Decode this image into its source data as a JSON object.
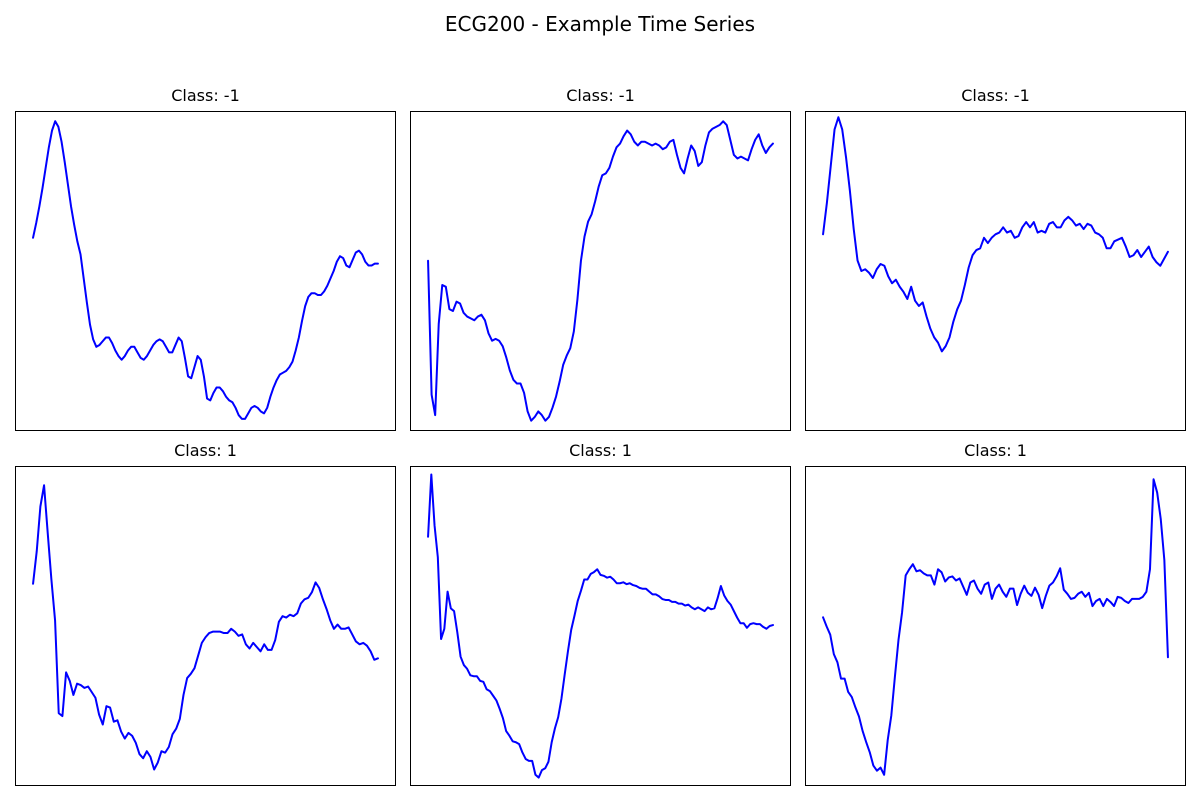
{
  "title": "ECG200 - Example Time Series",
  "chart_data": [
    {
      "type": "line",
      "title": "Class: -1",
      "xlabel": "",
      "ylabel": "",
      "ticks_visible": false,
      "grid": false,
      "color": "#0000ff",
      "y": [
        0.36,
        0.44,
        0.53,
        0.63,
        0.74,
        0.85,
        0.94,
        0.99,
        0.96,
        0.88,
        0.77,
        0.65,
        0.53,
        0.43,
        0.34,
        0.27,
        0.14,
        0.01,
        -0.11,
        -0.19,
        -0.23,
        -0.22,
        -0.2,
        -0.18,
        -0.18,
        -0.21,
        -0.25,
        -0.28,
        -0.3,
        -0.28,
        -0.25,
        -0.23,
        -0.23,
        -0.26,
        -0.29,
        -0.3,
        -0.28,
        -0.25,
        -0.22,
        -0.2,
        -0.19,
        -0.2,
        -0.23,
        -0.26,
        -0.26,
        -0.22,
        -0.18,
        -0.2,
        -0.29,
        -0.39,
        -0.4,
        -0.34,
        -0.28,
        -0.3,
        -0.39,
        -0.51,
        -0.52,
        -0.48,
        -0.45,
        -0.45,
        -0.47,
        -0.5,
        -0.52,
        -0.53,
        -0.56,
        -0.6,
        -0.62,
        -0.62,
        -0.59,
        -0.56,
        -0.55,
        -0.56,
        -0.58,
        -0.59,
        -0.56,
        -0.5,
        -0.45,
        -0.41,
        -0.38,
        -0.37,
        -0.36,
        -0.34,
        -0.31,
        -0.25,
        -0.18,
        -0.09,
        -0.01,
        0.04,
        0.06,
        0.06,
        0.05,
        0.05,
        0.07,
        0.1,
        0.14,
        0.18,
        0.23,
        0.26,
        0.25,
        0.21,
        0.2,
        0.24,
        0.28,
        0.29,
        0.27,
        0.23,
        0.21,
        0.21,
        0.22,
        0.22
      ],
      "ylim": [
        -0.68,
        1.04
      ]
    },
    {
      "type": "line",
      "title": "Class: -1",
      "xlabel": "",
      "ylabel": "",
      "ticks_visible": false,
      "grid": false,
      "color": "#0000ff",
      "y": [
        0.35,
        -0.37,
        -0.48,
        0.01,
        0.22,
        0.21,
        0.09,
        0.08,
        0.13,
        0.12,
        0.07,
        0.05,
        0.04,
        0.03,
        0.05,
        0.06,
        0.03,
        -0.04,
        -0.08,
        -0.07,
        -0.08,
        -0.11,
        -0.17,
        -0.24,
        -0.29,
        -0.31,
        -0.31,
        -0.36,
        -0.46,
        -0.51,
        -0.49,
        -0.46,
        -0.48,
        -0.51,
        -0.49,
        -0.44,
        -0.38,
        -0.3,
        -0.21,
        -0.16,
        -0.12,
        -0.03,
        0.14,
        0.35,
        0.48,
        0.56,
        0.6,
        0.67,
        0.75,
        0.81,
        0.82,
        0.85,
        0.91,
        0.96,
        0.98,
        1.02,
        1.05,
        1.03,
        0.99,
        0.97,
        0.99,
        0.99,
        0.98,
        0.97,
        0.98,
        0.97,
        0.95,
        0.96,
        0.99,
        1.0,
        0.92,
        0.85,
        0.82,
        0.9,
        0.97,
        0.94,
        0.86,
        0.88,
        0.97,
        1.04,
        1.06,
        1.07,
        1.08,
        1.1,
        1.08,
        1.0,
        0.92,
        0.9,
        0.91,
        0.9,
        0.89,
        0.95,
        1.0,
        1.03,
        0.97,
        0.93,
        0.96,
        0.98
      ],
      "ylim": [
        -0.56,
        1.15
      ]
    },
    {
      "type": "line",
      "title": "Class: -1",
      "xlabel": "",
      "ylabel": "",
      "ticks_visible": false,
      "grid": false,
      "color": "#0000ff",
      "y": [
        0.52,
        0.7,
        0.91,
        1.12,
        1.19,
        1.12,
        0.96,
        0.77,
        0.55,
        0.37,
        0.31,
        0.32,
        0.3,
        0.27,
        0.32,
        0.35,
        0.34,
        0.28,
        0.24,
        0.26,
        0.22,
        0.19,
        0.15,
        0.22,
        0.14,
        0.11,
        0.13,
        0.05,
        -0.02,
        -0.07,
        -0.1,
        -0.15,
        -0.12,
        -0.07,
        0.02,
        0.09,
        0.14,
        0.23,
        0.33,
        0.4,
        0.43,
        0.44,
        0.5,
        0.47,
        0.5,
        0.52,
        0.53,
        0.56,
        0.53,
        0.54,
        0.5,
        0.51,
        0.56,
        0.59,
        0.56,
        0.59,
        0.53,
        0.54,
        0.53,
        0.58,
        0.59,
        0.56,
        0.56,
        0.6,
        0.62,
        0.6,
        0.57,
        0.58,
        0.55,
        0.58,
        0.57,
        0.53,
        0.52,
        0.5,
        0.44,
        0.44,
        0.48,
        0.49,
        0.5,
        0.45,
        0.39,
        0.4,
        0.43,
        0.39,
        0.42,
        0.45,
        0.39,
        0.36,
        0.34,
        0.38,
        0.42
      ],
      "ylim": [
        -0.6,
        1.22
      ]
    },
    {
      "type": "line",
      "title": "Class: 1",
      "xlabel": "",
      "ylabel": "",
      "ticks_visible": false,
      "grid": false,
      "color": "#0000ff",
      "y": [
        1.25,
        1.48,
        1.8,
        1.95,
        1.61,
        1.28,
        0.99,
        0.33,
        0.31,
        0.62,
        0.56,
        0.46,
        0.54,
        0.53,
        0.51,
        0.52,
        0.48,
        0.44,
        0.32,
        0.25,
        0.38,
        0.37,
        0.27,
        0.28,
        0.2,
        0.15,
        0.19,
        0.17,
        0.12,
        0.04,
        0.01,
        0.06,
        0.02,
        -0.07,
        -0.02,
        0.06,
        0.05,
        0.09,
        0.18,
        0.22,
        0.29,
        0.46,
        0.58,
        0.61,
        0.65,
        0.74,
        0.83,
        0.87,
        0.9,
        0.91,
        0.91,
        0.91,
        0.9,
        0.9,
        0.93,
        0.91,
        0.88,
        0.89,
        0.82,
        0.79,
        0.83,
        0.8,
        0.77,
        0.82,
        0.78,
        0.78,
        0.85,
        0.98,
        1.02,
        1.01,
        1.03,
        1.02,
        1.04,
        1.11,
        1.14,
        1.15,
        1.19,
        1.26,
        1.22,
        1.14,
        1.07,
        0.99,
        0.93,
        0.96,
        0.93,
        0.93,
        0.94,
        0.89,
        0.84,
        0.82,
        0.83,
        0.81,
        0.77,
        0.71,
        0.72
      ],
      "ylim": [
        -0.18,
        2.08
      ]
    },
    {
      "type": "line",
      "title": "Class: 1",
      "xlabel": "",
      "ylabel": "",
      "ticks_visible": false,
      "grid": false,
      "color": "#0000ff",
      "y": [
        1.83,
        2.5,
        1.95,
        1.61,
        0.73,
        0.84,
        1.24,
        1.06,
        1.03,
        0.8,
        0.54,
        0.45,
        0.41,
        0.34,
        0.33,
        0.33,
        0.28,
        0.27,
        0.19,
        0.17,
        0.12,
        0.07,
        -0.02,
        -0.12,
        -0.26,
        -0.31,
        -0.37,
        -0.38,
        -0.4,
        -0.49,
        -0.56,
        -0.58,
        -0.58,
        -0.73,
        -0.76,
        -0.68,
        -0.66,
        -0.59,
        -0.38,
        -0.23,
        -0.11,
        0.09,
        0.35,
        0.6,
        0.83,
        0.98,
        1.14,
        1.25,
        1.37,
        1.37,
        1.43,
        1.45,
        1.48,
        1.42,
        1.41,
        1.39,
        1.4,
        1.37,
        1.33,
        1.33,
        1.34,
        1.32,
        1.33,
        1.31,
        1.3,
        1.28,
        1.27,
        1.27,
        1.24,
        1.21,
        1.21,
        1.19,
        1.16,
        1.15,
        1.15,
        1.13,
        1.13,
        1.11,
        1.11,
        1.09,
        1.1,
        1.07,
        1.05,
        1.07,
        1.05,
        1.03,
        1.07,
        1.05,
        1.06,
        1.17,
        1.3,
        1.2,
        1.14,
        1.1,
        1.03,
        0.96,
        0.9,
        0.9,
        0.85,
        0.89,
        0.9,
        0.89,
        0.89,
        0.86,
        0.84,
        0.87,
        0.88
      ],
      "ylim": [
        -0.84,
        2.58
      ]
    },
    {
      "type": "line",
      "title": "Class: 1",
      "xlabel": "",
      "ylabel": "",
      "ticks_visible": false,
      "grid": false,
      "color": "#0000ff",
      "y": [
        1.09,
        1.0,
        0.92,
        0.73,
        0.65,
        0.49,
        0.49,
        0.36,
        0.31,
        0.21,
        0.12,
        -0.02,
        -0.13,
        -0.23,
        -0.36,
        -0.41,
        -0.38,
        -0.45,
        -0.11,
        0.13,
        0.51,
        0.87,
        1.14,
        1.5,
        1.56,
        1.61,
        1.54,
        1.55,
        1.52,
        1.5,
        1.5,
        1.41,
        1.56,
        1.53,
        1.44,
        1.48,
        1.49,
        1.45,
        1.47,
        1.39,
        1.31,
        1.43,
        1.45,
        1.37,
        1.32,
        1.41,
        1.43,
        1.27,
        1.37,
        1.41,
        1.34,
        1.29,
        1.37,
        1.37,
        1.21,
        1.32,
        1.4,
        1.33,
        1.3,
        1.38,
        1.31,
        1.18,
        1.3,
        1.4,
        1.43,
        1.49,
        1.57,
        1.36,
        1.32,
        1.27,
        1.28,
        1.32,
        1.34,
        1.29,
        1.33,
        1.2,
        1.25,
        1.27,
        1.2,
        1.27,
        1.24,
        1.2,
        1.29,
        1.28,
        1.25,
        1.23,
        1.27,
        1.27,
        1.27,
        1.29,
        1.34,
        1.56,
        2.44,
        2.31,
        2.05,
        1.65,
        0.7
      ],
      "ylim": [
        -0.55,
        2.56
      ]
    }
  ]
}
